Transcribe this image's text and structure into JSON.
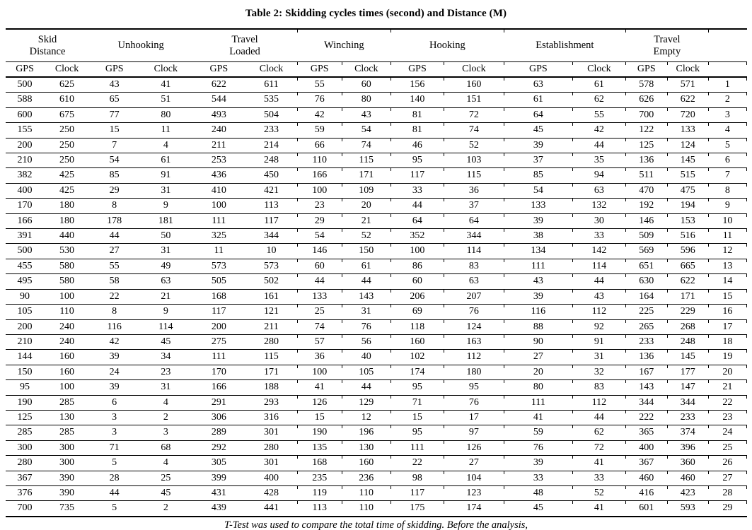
{
  "page": {
    "title": "Table 2: Skidding cycles times (second) and Distance (M)",
    "footer": "T-Test was used to compare the total time of skidding. Before the analysis,"
  },
  "table": {
    "groups": [
      {
        "label": "Skid\nDistance"
      },
      {
        "label": "Unhooking"
      },
      {
        "label": "Travel\nLoaded"
      },
      {
        "label": "Winching"
      },
      {
        "label": "Hooking"
      },
      {
        "label": "Establishment"
      },
      {
        "label": "Travel\nEmpty"
      }
    ],
    "row_number_header": "",
    "subheaders": [
      "GPS",
      "Clock",
      "GPS",
      "Clock",
      "GPS",
      "Clock",
      "GPS",
      "Clock",
      "GPS",
      "Clock",
      "GPS",
      "Clock",
      "GPS",
      "Clock",
      ""
    ],
    "rows": [
      [
        500,
        625,
        43,
        41,
        622,
        611,
        55,
        60,
        156,
        160,
        63,
        61,
        578,
        571,
        1
      ],
      [
        588,
        610,
        65,
        51,
        544,
        535,
        76,
        80,
        140,
        151,
        61,
        62,
        626,
        622,
        2
      ],
      [
        600,
        675,
        77,
        80,
        493,
        504,
        42,
        43,
        81,
        72,
        64,
        55,
        700,
        720,
        3
      ],
      [
        155,
        250,
        15,
        11,
        240,
        233,
        59,
        54,
        81,
        74,
        45,
        42,
        122,
        133,
        4
      ],
      [
        200,
        250,
        7,
        4,
        211,
        214,
        66,
        74,
        46,
        52,
        39,
        44,
        125,
        124,
        5
      ],
      [
        210,
        250,
        54,
        61,
        253,
        248,
        110,
        115,
        95,
        103,
        37,
        35,
        136,
        145,
        6
      ],
      [
        382,
        425,
        85,
        91,
        436,
        450,
        166,
        171,
        117,
        115,
        85,
        94,
        511,
        515,
        7
      ],
      [
        400,
        425,
        29,
        31,
        410,
        421,
        100,
        109,
        33,
        36,
        54,
        63,
        470,
        475,
        8
      ],
      [
        170,
        180,
        8,
        9,
        100,
        113,
        23,
        20,
        44,
        37,
        133,
        132,
        192,
        194,
        9
      ],
      [
        166,
        180,
        178,
        181,
        111,
        117,
        29,
        21,
        64,
        64,
        39,
        30,
        146,
        153,
        10
      ],
      [
        391,
        440,
        44,
        50,
        325,
        344,
        54,
        52,
        352,
        344,
        38,
        33,
        509,
        516,
        11
      ],
      [
        500,
        530,
        27,
        31,
        11,
        10,
        146,
        150,
        100,
        114,
        134,
        142,
        569,
        596,
        12
      ],
      [
        455,
        580,
        55,
        49,
        573,
        573,
        60,
        61,
        86,
        83,
        111,
        114,
        651,
        665,
        13
      ],
      [
        495,
        580,
        58,
        63,
        505,
        502,
        44,
        44,
        60,
        63,
        43,
        44,
        630,
        622,
        14
      ],
      [
        90,
        100,
        22,
        21,
        168,
        161,
        133,
        143,
        206,
        207,
        39,
        43,
        164,
        171,
        15
      ],
      [
        105,
        110,
        8,
        9,
        117,
        121,
        25,
        31,
        69,
        76,
        116,
        112,
        225,
        229,
        16
      ],
      [
        200,
        240,
        116,
        114,
        200,
        211,
        74,
        76,
        118,
        124,
        88,
        92,
        265,
        268,
        17
      ],
      [
        210,
        240,
        42,
        45,
        275,
        280,
        57,
        56,
        160,
        163,
        90,
        91,
        233,
        248,
        18
      ],
      [
        144,
        160,
        39,
        34,
        111,
        115,
        36,
        40,
        102,
        112,
        27,
        31,
        136,
        145,
        19
      ],
      [
        150,
        160,
        24,
        23,
        170,
        171,
        100,
        105,
        174,
        180,
        20,
        32,
        167,
        177,
        20
      ],
      [
        95,
        100,
        39,
        31,
        166,
        188,
        41,
        44,
        95,
        95,
        80,
        83,
        143,
        147,
        21
      ],
      [
        190,
        285,
        6,
        4,
        291,
        293,
        126,
        129,
        71,
        76,
        111,
        112,
        344,
        344,
        22
      ],
      [
        125,
        130,
        3,
        2,
        306,
        316,
        15,
        12,
        15,
        17,
        41,
        44,
        222,
        233,
        23
      ],
      [
        285,
        285,
        3,
        3,
        289,
        301,
        190,
        196,
        95,
        97,
        59,
        62,
        365,
        374,
        24
      ],
      [
        300,
        300,
        71,
        68,
        292,
        280,
        135,
        130,
        111,
        126,
        76,
        72,
        400,
        396,
        25
      ],
      [
        280,
        300,
        5,
        4,
        305,
        301,
        168,
        160,
        22,
        27,
        39,
        41,
        367,
        360,
        26
      ],
      [
        367,
        390,
        28,
        25,
        399,
        400,
        235,
        236,
        98,
        104,
        33,
        33,
        460,
        460,
        27
      ],
      [
        376,
        390,
        44,
        45,
        431,
        428,
        119,
        110,
        117,
        123,
        48,
        52,
        416,
        423,
        28
      ],
      [
        700,
        735,
        5,
        2,
        439,
        441,
        113,
        110,
        175,
        174,
        45,
        41,
        601,
        593,
        29
      ]
    ]
  }
}
